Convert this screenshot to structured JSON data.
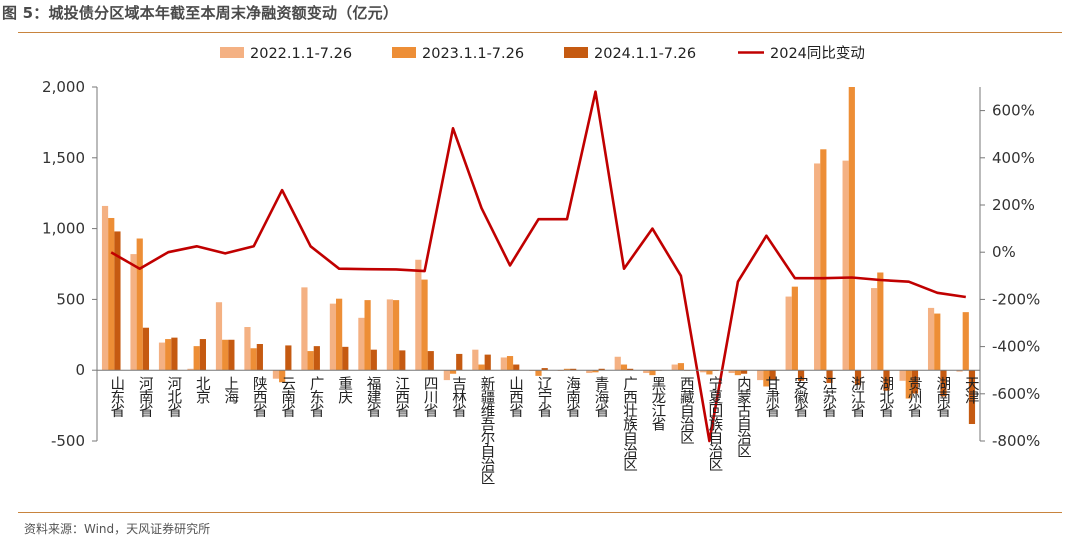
{
  "title": "图 5：城投债分区域本年截至本周末净融资额变动（亿元）",
  "source": "资料来源：Wind，天风证券研究所",
  "colors": {
    "s2022": "#f4b183",
    "s2023": "#ed8e36",
    "s2024": "#c55a11",
    "yoy": "#c00000",
    "accent_rule": "#c8843e"
  },
  "chart_data": {
    "type": "bar",
    "categories": [
      "山东省",
      "河南省",
      "河北省",
      "北京",
      "上海",
      "陕西省",
      "云南省",
      "广东省",
      "重庆",
      "福建省",
      "江西省",
      "四川省",
      "吉林省",
      "新疆维吾尔自治区",
      "山西省",
      "辽宁省",
      "海南省",
      "青海省",
      "广西壮族自治区",
      "黑龙江省",
      "西藏自治区",
      "宁夏回族自治区",
      "内蒙古自治区",
      "甘肃省",
      "安徽省",
      "江苏省",
      "浙江省",
      "湖北省",
      "贵州省",
      "湖南省",
      "天津"
    ],
    "series": [
      {
        "name": "2022.1.1-7.26",
        "axis": "left",
        "values": [
          1160,
          820,
          195,
          10,
          480,
          305,
          -60,
          585,
          470,
          370,
          500,
          780,
          -70,
          145,
          90,
          -5,
          -5,
          -20,
          95,
          -20,
          40,
          -15,
          -20,
          -70,
          520,
          1460,
          1480,
          580,
          -75,
          440,
          -10
        ]
      },
      {
        "name": "2023.1.1-7.26",
        "axis": "left",
        "values": [
          1075,
          930,
          220,
          170,
          215,
          155,
          -85,
          135,
          505,
          495,
          495,
          640,
          -25,
          40,
          100,
          -40,
          10,
          -15,
          40,
          -35,
          50,
          -30,
          -35,
          -115,
          590,
          1560,
          2000,
          690,
          -200,
          400,
          410
        ]
      },
      {
        "name": "2024.1.1-7.26",
        "axis": "left",
        "values": [
          980,
          300,
          230,
          220,
          215,
          185,
          175,
          170,
          165,
          145,
          140,
          135,
          115,
          110,
          40,
          15,
          10,
          10,
          10,
          0,
          0,
          -5,
          -25,
          -70,
          -75,
          -90,
          -105,
          -145,
          -165,
          -185,
          -380
        ]
      },
      {
        "name": "2024同比变动",
        "axis": "right",
        "type": "line",
        "values": [
          -1,
          -70,
          0,
          25,
          -5,
          25,
          263,
          25,
          -70,
          -72,
          -73,
          -80,
          525,
          187,
          -56,
          140,
          140,
          680,
          -70,
          100,
          -100,
          -800,
          -125,
          70,
          -110,
          -110,
          -107,
          -118,
          -125,
          -172,
          -190
        ]
      }
    ],
    "left_axis": {
      "ylim": [
        -500,
        2000
      ],
      "ticks": [
        "-500",
        "0",
        "500",
        "1,000",
        "1,500",
        "2,000"
      ]
    },
    "right_axis": {
      "ylim": [
        -800,
        700
      ],
      "ticks": [
        "-800%",
        "-600%",
        "-400%",
        "-200%",
        "0%",
        "200%",
        "400%",
        "600%"
      ]
    },
    "legend_position": "top-center"
  }
}
